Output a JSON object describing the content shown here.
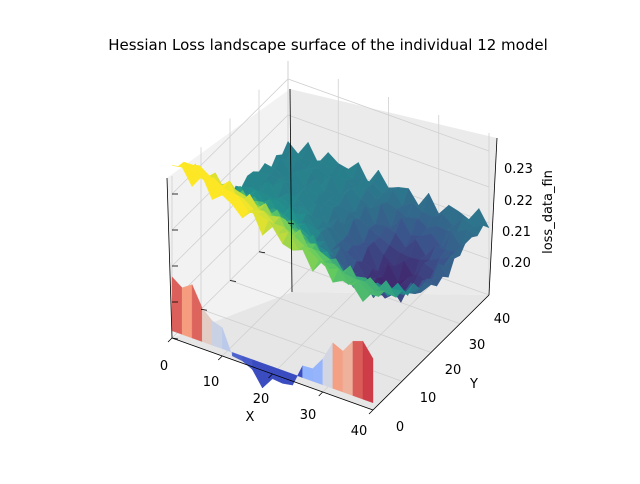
{
  "chart_data": {
    "type": "surface3d",
    "title": "Hessian Loss landscape surface of the individual 12 model",
    "xlabel": "X",
    "ylabel": "Y",
    "zlabel": "loss_data_fin",
    "xlim": [
      0,
      40
    ],
    "ylim": [
      0,
      40
    ],
    "zlim": [
      0.19,
      0.235
    ],
    "x_ticks": [
      "0",
      "10",
      "20",
      "30",
      "40"
    ],
    "y_ticks": [
      "0",
      "10",
      "20",
      "30",
      "40"
    ],
    "z_ticks": [
      "0.20",
      "0.21",
      "0.22",
      "0.23"
    ],
    "surfaces": [
      {
        "colormap": "viridis",
        "z_range": [
          0.196,
          0.235
        ]
      },
      {
        "colormap": "coolwarm",
        "z_range": [
          0.19,
          0.225
        ]
      }
    ],
    "grid": true
  }
}
